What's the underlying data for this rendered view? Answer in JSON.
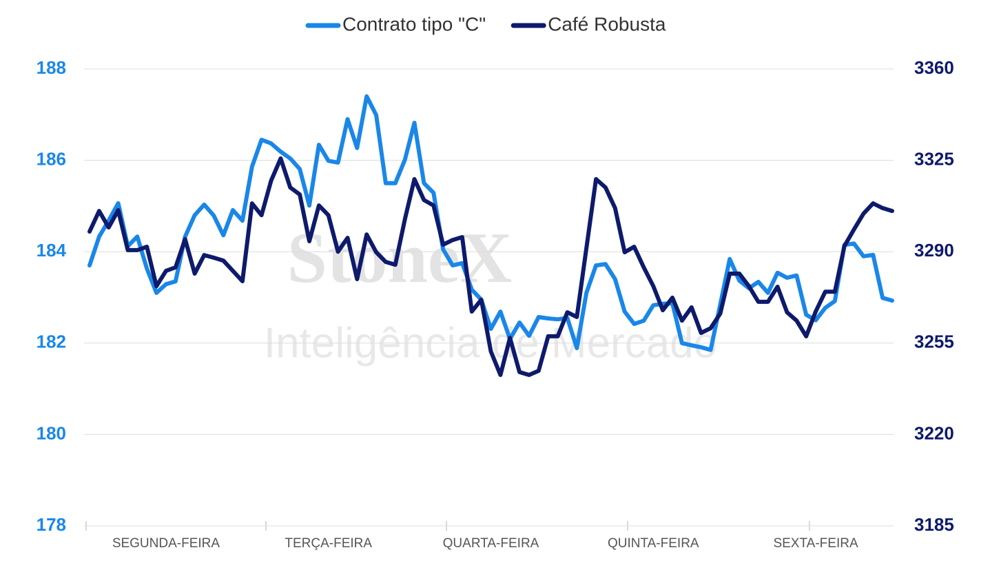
{
  "chart_data": {
    "type": "line",
    "watermark": {
      "logo": "StoneX",
      "tagline": "Inteligência de Mercado"
    },
    "categories": [
      null,
      null,
      null,
      null,
      null,
      null,
      null,
      null,
      "SEGUNDA-FEIRA",
      null,
      null,
      null,
      null,
      null,
      null,
      null,
      null,
      null,
      null,
      null,
      null,
      null,
      null,
      null,
      null,
      "TERÇA-FEIRA",
      null,
      null,
      null,
      null,
      null,
      null,
      null,
      null,
      null,
      null,
      null,
      null,
      null,
      null,
      null,
      null,
      "QUARTA-FEIRA",
      null,
      null,
      null,
      null,
      null,
      null,
      null,
      null,
      null,
      null,
      null,
      null,
      null,
      null,
      null,
      null,
      "QUINTA-FEIRA",
      null,
      null,
      null,
      null,
      null,
      null,
      null,
      null,
      null,
      null,
      null,
      null,
      null,
      null,
      null,
      null,
      "SEXTA-FEIRA",
      null,
      null,
      null,
      null,
      null,
      null,
      null,
      null
    ],
    "series": [
      {
        "name": "Contrato tipo \"C\"",
        "color": "#1a87e8",
        "axis": "y",
        "values": [
          183.7,
          184.33,
          184.68,
          185.06,
          184.12,
          184.33,
          183.63,
          183.1,
          183.29,
          183.35,
          184.33,
          184.8,
          185.03,
          184.79,
          184.36,
          184.91,
          184.68,
          185.86,
          186.45,
          186.37,
          186.19,
          186.04,
          185.81,
          185.01,
          186.34,
          185.99,
          185.95,
          186.9,
          186.27,
          187.4,
          186.99,
          185.5,
          185.5,
          186.01,
          186.82,
          185.5,
          185.29,
          184.05,
          183.7,
          183.75,
          183.17,
          182.95,
          182.31,
          182.69,
          182.09,
          182.45,
          182.16,
          182.57,
          182.54,
          182.52,
          182.55,
          181.89,
          183.1,
          183.7,
          183.73,
          183.4,
          182.69,
          182.42,
          182.49,
          182.83,
          182.86,
          182.87,
          182,
          181.95,
          181.91,
          181.85,
          182.84,
          183.84,
          183.37,
          183.2,
          183.34,
          183.1,
          183.54,
          183.43,
          183.48,
          182.62,
          182.5,
          182.77,
          182.92,
          184.15,
          184.18,
          183.9,
          183.93,
          182.99,
          182.93
        ]
      },
      {
        "name": "Café Robusta",
        "color": "#0e1a6b",
        "axis": "y2",
        "values": [
          3297.7,
          3305.6,
          3299.3,
          3305.9,
          3290.6,
          3290.6,
          3291.9,
          3276.8,
          3282.7,
          3284,
          3294.8,
          3281.6,
          3288.7,
          3287.7,
          3286.6,
          3282.7,
          3278.7,
          3308.5,
          3304,
          3317.2,
          3325.7,
          3314.6,
          3311.9,
          3294,
          3307.7,
          3304,
          3290,
          3295.3,
          3279.5,
          3296.6,
          3289.8,
          3286.1,
          3285,
          3302.4,
          3317.8,
          3309.8,
          3307.7,
          3292.7,
          3294.5,
          3295.6,
          3267.1,
          3271.6,
          3251.8,
          3242.8,
          3257,
          3243.9,
          3242.8,
          3244.4,
          3257.6,
          3257.6,
          3266.8,
          3265,
          3291.4,
          3317.8,
          3314.6,
          3306.7,
          3289.8,
          3291.9,
          3284,
          3276.8,
          3267.6,
          3272.4,
          3263.6,
          3268.7,
          3258.9,
          3260.7,
          3266.3,
          3281.6,
          3281.6,
          3276.8,
          3270.8,
          3270.8,
          3276.6,
          3266.8,
          3263.6,
          3257.6,
          3267.1,
          3274.7,
          3274.7,
          3292.2,
          3298.5,
          3304.6,
          3308.5,
          3306.7,
          3305.6
        ]
      }
    ],
    "ylim": [
      178,
      188
    ],
    "yticks": [
      178,
      180,
      182,
      184,
      186,
      188
    ],
    "y2lim": [
      3185,
      3360
    ],
    "y2ticks": [
      3185,
      3220,
      3255,
      3290,
      3325,
      3360
    ],
    "grid": true,
    "legend": "top"
  }
}
